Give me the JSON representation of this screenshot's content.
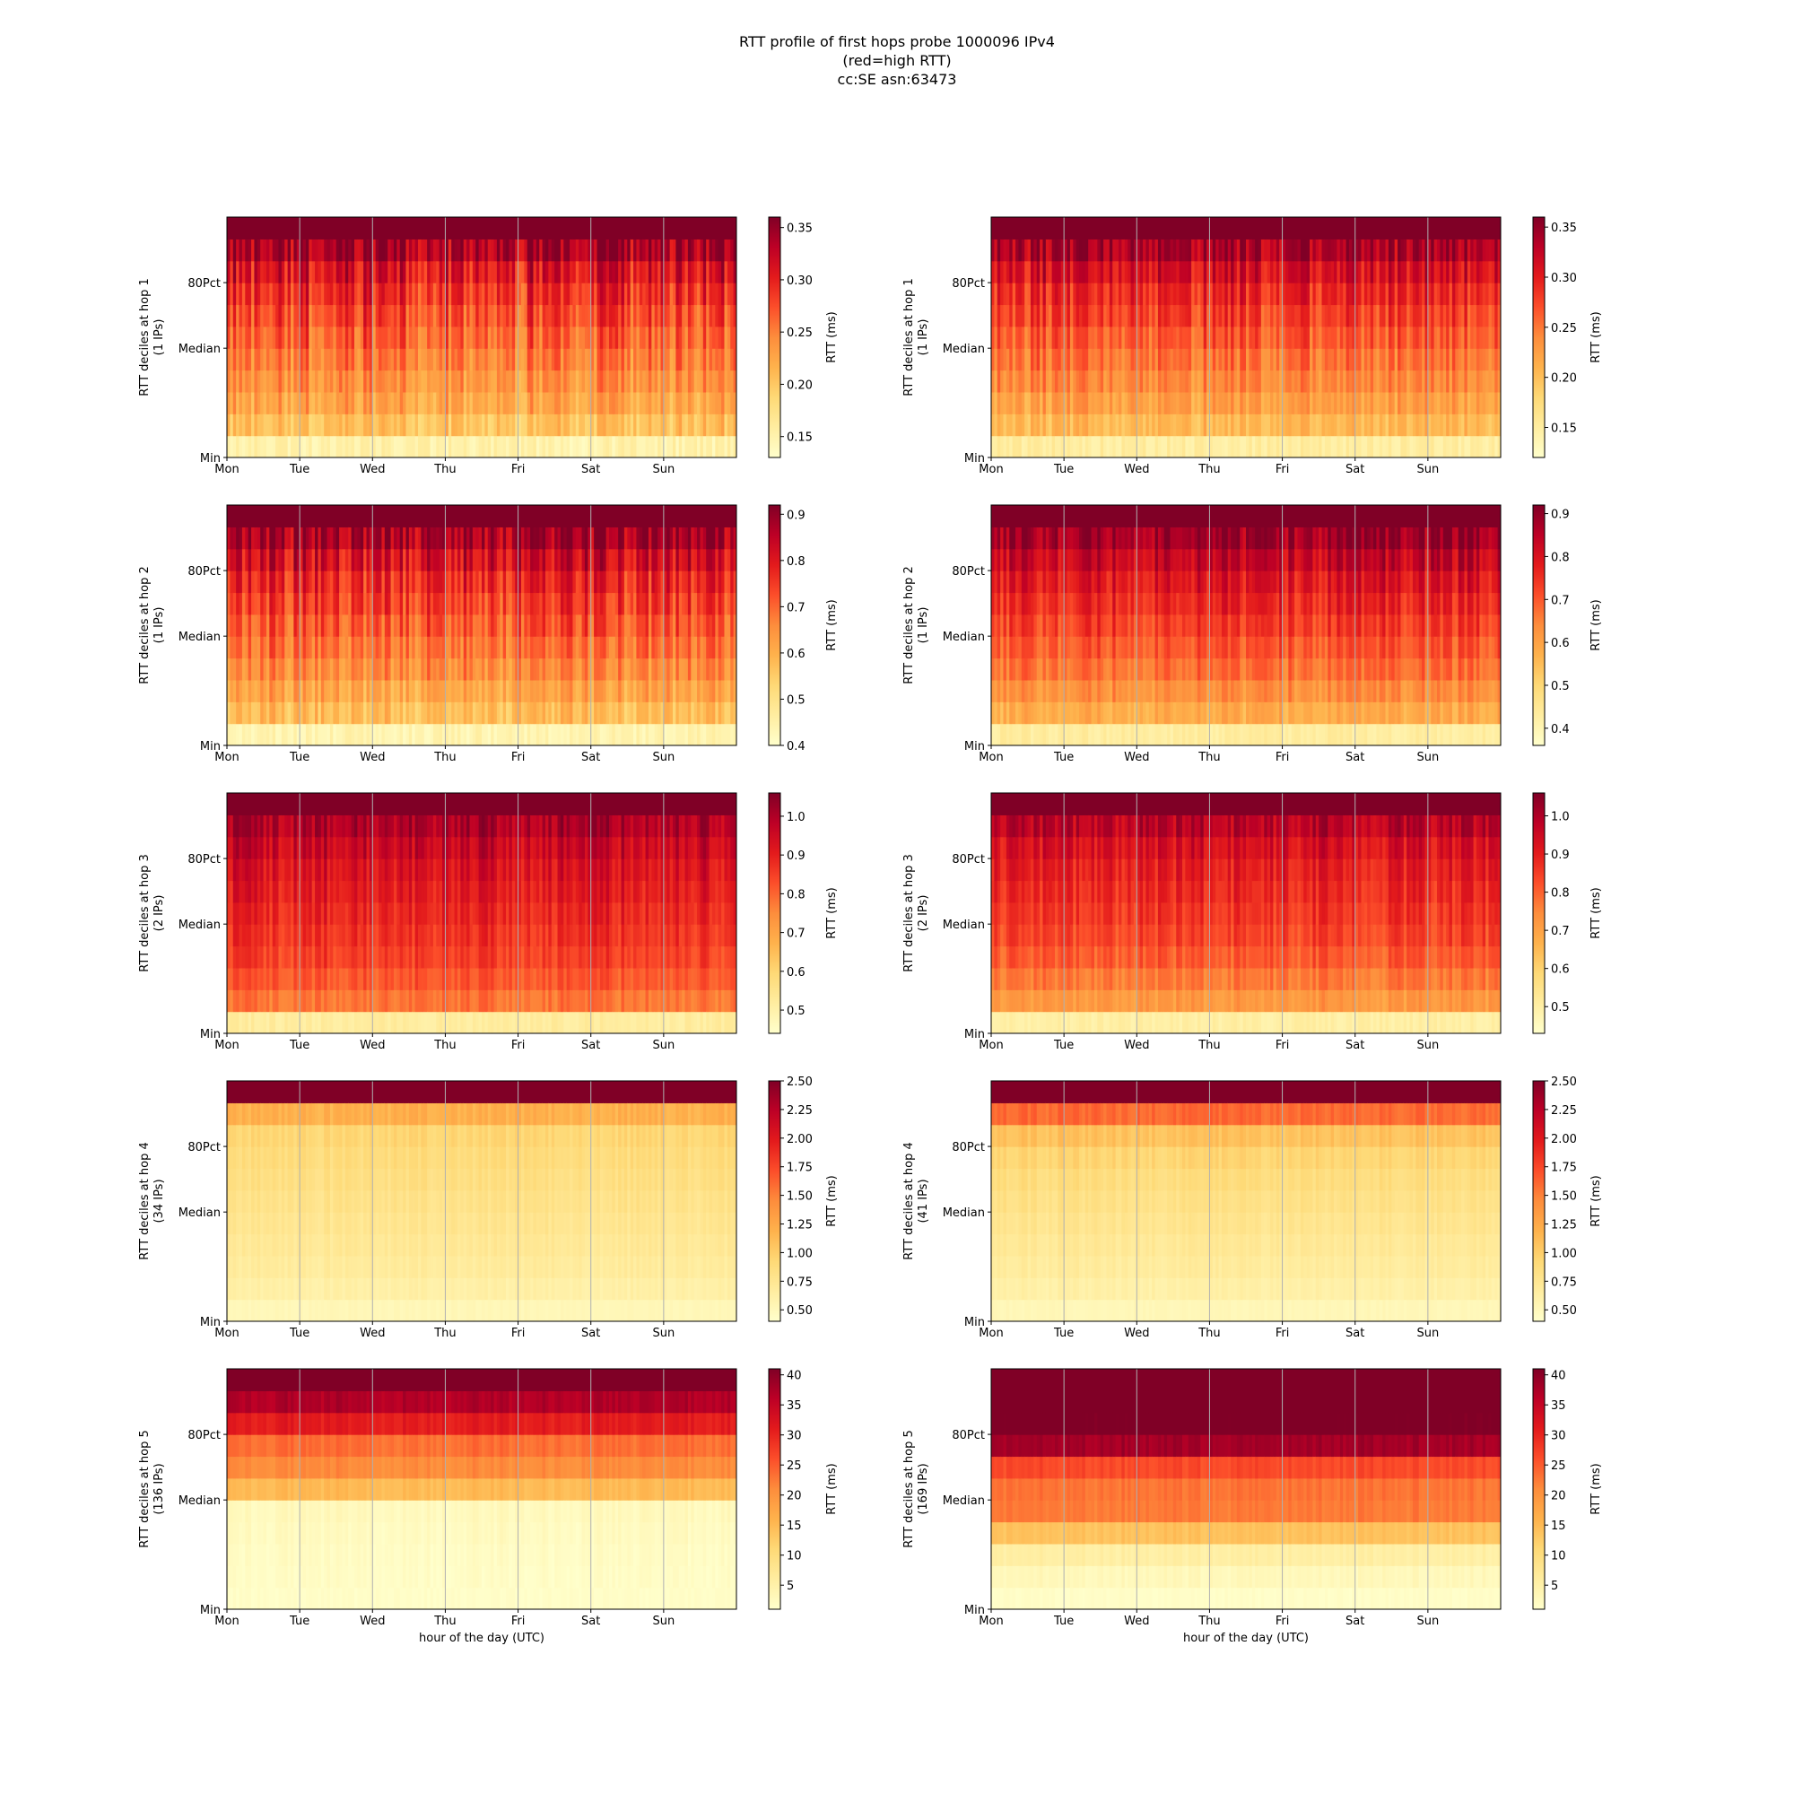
{
  "figure": {
    "title_lines": [
      "RTT profile of first hops probe 1000096 IPv4",
      "(red=high RTT)",
      "cc:SE asn:63473"
    ]
  },
  "chart_data": {
    "type": "heatmap",
    "colormap": "YlOrRd",
    "colormap_stops": [
      "#ffffcc",
      "#ffeda0",
      "#fed976",
      "#feb24c",
      "#fd8d3c",
      "#fc4e2a",
      "#e31a1c",
      "#bd0026",
      "#800026"
    ],
    "grid_color": "#b0b0b0",
    "x_tick_labels": [
      "Mon",
      "Tue",
      "Wed",
      "Thu",
      "Fri",
      "Sat",
      "Sun"
    ],
    "y_tick_labels": [
      "Min",
      "Median",
      "80Pct"
    ],
    "x_axis_label": "hour of the day (UTC)",
    "colorbar_label": "RTT (ms)",
    "deciles": 11,
    "time_bins": 168,
    "panels": [
      {
        "column": 0,
        "row": 0,
        "hop": 1,
        "ylabel": [
          "RTT deciles at hop 1",
          "(1 IPs)"
        ],
        "colorbar_ticks": [
          "0.15",
          "0.20",
          "0.25",
          "0.30",
          "0.35"
        ],
        "colorbar_range": [
          0.13,
          0.36
        ],
        "decile_rtt_ms": [
          0.15,
          0.205,
          0.226,
          0.24,
          0.252,
          0.265,
          0.278,
          0.292,
          0.31,
          0.34,
          0.5
        ],
        "variation": 0.018
      },
      {
        "column": 1,
        "row": 0,
        "hop": 1,
        "ylabel": [
          "RTT deciles at hop 1",
          "(1 IPs)"
        ],
        "colorbar_ticks": [
          "0.15",
          "0.20",
          "0.25",
          "0.30",
          "0.35"
        ],
        "colorbar_range": [
          0.12,
          0.36
        ],
        "decile_rtt_ms": [
          0.15,
          0.205,
          0.225,
          0.24,
          0.253,
          0.266,
          0.279,
          0.293,
          0.312,
          0.338,
          0.5
        ],
        "variation": 0.014
      },
      {
        "column": 0,
        "row": 1,
        "hop": 2,
        "ylabel": [
          "RTT deciles at hop 2",
          "(1 IPs)"
        ],
        "colorbar_ticks": [
          "0.4",
          "0.5",
          "0.6",
          "0.7",
          "0.8",
          "0.9"
        ],
        "colorbar_range": [
          0.4,
          0.92
        ],
        "decile_rtt_ms": [
          0.44,
          0.58,
          0.62,
          0.66,
          0.69,
          0.72,
          0.75,
          0.78,
          0.82,
          0.88,
          1.2
        ],
        "variation": 0.035
      },
      {
        "column": 1,
        "row": 1,
        "hop": 2,
        "ylabel": [
          "RTT deciles at hop 2",
          "(1 IPs)"
        ],
        "colorbar_ticks": [
          "0.4",
          "0.5",
          "0.6",
          "0.7",
          "0.8",
          "0.9"
        ],
        "colorbar_range": [
          0.36,
          0.92
        ],
        "decile_rtt_ms": [
          0.43,
          0.58,
          0.63,
          0.67,
          0.7,
          0.73,
          0.76,
          0.79,
          0.83,
          0.88,
          1.2
        ],
        "variation": 0.028
      },
      {
        "column": 0,
        "row": 2,
        "hop": 3,
        "ylabel": [
          "RTT deciles at hop 3",
          "(2 IPs)"
        ],
        "colorbar_ticks": [
          "0.5",
          "0.6",
          "0.7",
          "0.8",
          "0.9",
          "1.0"
        ],
        "colorbar_range": [
          0.44,
          1.06
        ],
        "decile_rtt_ms": [
          0.52,
          0.78,
          0.82,
          0.85,
          0.87,
          0.89,
          0.91,
          0.93,
          0.96,
          1.0,
          1.4
        ],
        "variation": 0.025
      },
      {
        "column": 1,
        "row": 2,
        "hop": 3,
        "ylabel": [
          "RTT deciles at hop 3",
          "(2 IPs)"
        ],
        "colorbar_ticks": [
          "0.5",
          "0.6",
          "0.7",
          "0.8",
          "0.9",
          "1.0"
        ],
        "colorbar_range": [
          0.43,
          1.06
        ],
        "decile_rtt_ms": [
          0.5,
          0.72,
          0.77,
          0.81,
          0.84,
          0.86,
          0.88,
          0.9,
          0.93,
          0.98,
          1.4
        ],
        "variation": 0.025
      },
      {
        "column": 0,
        "row": 3,
        "hop": 4,
        "ylabel": [
          "RTT deciles at hop 4",
          "(34 IPs)"
        ],
        "colorbar_ticks": [
          "0.50",
          "0.75",
          "1.00",
          "1.25",
          "1.50",
          "1.75",
          "2.00",
          "2.25",
          "2.50"
        ],
        "colorbar_range": [
          0.4,
          2.5
        ],
        "decile_rtt_ms": [
          0.52,
          0.62,
          0.68,
          0.72,
          0.76,
          0.8,
          0.84,
          0.88,
          0.93,
          1.2,
          3.5
        ],
        "variation": 0.03
      },
      {
        "column": 1,
        "row": 3,
        "hop": 4,
        "ylabel": [
          "RTT deciles at hop 4",
          "(41 IPs)"
        ],
        "colorbar_ticks": [
          "0.50",
          "0.75",
          "1.00",
          "1.25",
          "1.50",
          "1.75",
          "2.00",
          "2.25",
          "2.50"
        ],
        "colorbar_range": [
          0.4,
          2.5
        ],
        "decile_rtt_ms": [
          0.52,
          0.62,
          0.68,
          0.72,
          0.77,
          0.82,
          0.87,
          0.94,
          1.08,
          1.6,
          3.5
        ],
        "variation": 0.03
      },
      {
        "column": 0,
        "row": 4,
        "hop": 5,
        "ylabel": [
          "RTT deciles at hop 5",
          "(136 IPs)"
        ],
        "colorbar_ticks": [
          "5",
          "10",
          "15",
          "20",
          "25",
          "30",
          "35",
          "40"
        ],
        "colorbar_range": [
          1.0,
          41.0
        ],
        "decile_rtt_ms": [
          1.5,
          1.8,
          2.0,
          2.4,
          2.8,
          15.0,
          21.0,
          23.5,
          31.0,
          37.0,
          48.0
        ],
        "variation": 0.6
      },
      {
        "column": 1,
        "row": 4,
        "hop": 5,
        "ylabel": [
          "RTT deciles at hop 5",
          "(169 IPs)"
        ],
        "colorbar_ticks": [
          "5",
          "10",
          "15",
          "20",
          "25",
          "30",
          "35",
          "40"
        ],
        "colorbar_range": [
          1.0,
          41.0
        ],
        "decile_rtt_ms": [
          1.5,
          3.0,
          5.5,
          14.0,
          22.5,
          23.0,
          26.5,
          38.0,
          42.0,
          45.0,
          48.0
        ],
        "variation": 0.6
      }
    ]
  }
}
